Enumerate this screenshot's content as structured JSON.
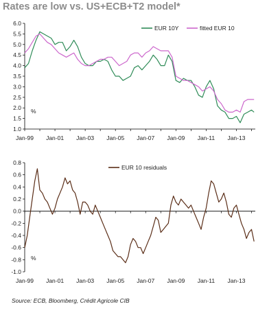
{
  "title": "Rates are low vs. US+ECB+T2 model*",
  "source": "Source: ECB, Bloomberg, Crédit Agricole CIB",
  "chart_data": [
    {
      "type": "line",
      "x_tick_labels": [
        "Jan-99",
        "Jan-01",
        "Jan-03",
        "Jan-05",
        "Jan-07",
        "Jan-09",
        "Jan-11",
        "Jan-13"
      ],
      "y_tick_labels": [
        "1.0",
        "1.5",
        "2.0",
        "2.5",
        "3.0",
        "3.5",
        "4.0",
        "4.5",
        "5.0",
        "5.5",
        "6.0"
      ],
      "ylim": [
        1.0,
        6.0
      ],
      "xlim": [
        "1999-01",
        "2014-04"
      ],
      "unit": "%",
      "legend_position": "top-right",
      "grid": false,
      "series": [
        {
          "name": "EUR 10Y",
          "color": "#2e8b57",
          "x": [
            "1999-01",
            "1999-04",
            "1999-07",
            "1999-10",
            "2000-01",
            "2000-04",
            "2000-07",
            "2000-10",
            "2001-01",
            "2001-04",
            "2001-07",
            "2001-10",
            "2002-01",
            "2002-04",
            "2002-07",
            "2002-10",
            "2003-01",
            "2003-04",
            "2003-07",
            "2003-10",
            "2004-01",
            "2004-04",
            "2004-07",
            "2004-10",
            "2005-01",
            "2005-04",
            "2005-07",
            "2005-10",
            "2006-01",
            "2006-04",
            "2006-07",
            "2006-10",
            "2007-01",
            "2007-04",
            "2007-07",
            "2007-10",
            "2008-01",
            "2008-04",
            "2008-07",
            "2008-10",
            "2009-01",
            "2009-04",
            "2009-07",
            "2009-10",
            "2010-01",
            "2010-04",
            "2010-07",
            "2010-10",
            "2011-01",
            "2011-04",
            "2011-07",
            "2011-10",
            "2012-01",
            "2012-04",
            "2012-07",
            "2012-10",
            "2013-01",
            "2013-04",
            "2013-07",
            "2013-10",
            "2014-01",
            "2014-03"
          ],
          "values": [
            3.9,
            4.1,
            4.7,
            5.2,
            5.6,
            5.5,
            5.4,
            5.3,
            5.0,
            5.1,
            5.1,
            4.7,
            4.9,
            5.2,
            4.9,
            4.4,
            4.1,
            4.0,
            4.0,
            4.2,
            4.2,
            4.3,
            4.2,
            3.8,
            3.5,
            3.5,
            3.3,
            3.4,
            3.5,
            3.9,
            4.0,
            3.8,
            4.0,
            4.2,
            4.5,
            4.3,
            4.0,
            4.0,
            4.5,
            4.2,
            3.3,
            3.2,
            3.4,
            3.3,
            3.3,
            3.0,
            2.6,
            2.5,
            3.0,
            3.3,
            2.9,
            2.1,
            1.9,
            1.8,
            1.5,
            1.5,
            1.6,
            1.3,
            1.7,
            1.8,
            1.9,
            1.8
          ]
        },
        {
          "name": "fitted EUR 10",
          "color": "#cc66cc",
          "x": [
            "1999-01",
            "1999-04",
            "1999-07",
            "1999-10",
            "2000-01",
            "2000-04",
            "2000-07",
            "2000-10",
            "2001-01",
            "2001-04",
            "2001-07",
            "2001-10",
            "2002-01",
            "2002-04",
            "2002-07",
            "2002-10",
            "2003-01",
            "2003-04",
            "2003-07",
            "2003-10",
            "2004-01",
            "2004-04",
            "2004-07",
            "2004-10",
            "2005-01",
            "2005-04",
            "2005-07",
            "2005-10",
            "2006-01",
            "2006-04",
            "2006-07",
            "2006-10",
            "2007-01",
            "2007-04",
            "2007-07",
            "2007-10",
            "2008-01",
            "2008-04",
            "2008-07",
            "2008-10",
            "2009-01",
            "2009-04",
            "2009-07",
            "2009-10",
            "2010-01",
            "2010-04",
            "2010-07",
            "2010-10",
            "2011-01",
            "2011-04",
            "2011-07",
            "2011-10",
            "2012-01",
            "2012-04",
            "2012-07",
            "2012-10",
            "2013-01",
            "2013-04",
            "2013-07",
            "2013-10",
            "2014-01",
            "2014-03"
          ],
          "values": [
            4.6,
            4.8,
            5.1,
            5.4,
            5.5,
            5.3,
            5.1,
            5.0,
            4.8,
            4.6,
            4.5,
            4.4,
            4.5,
            4.6,
            4.3,
            4.1,
            4.0,
            4.0,
            4.1,
            4.2,
            4.3,
            4.3,
            4.4,
            4.4,
            4.2,
            4.0,
            4.1,
            4.2,
            4.5,
            4.6,
            4.6,
            4.4,
            4.6,
            4.7,
            4.9,
            4.8,
            4.7,
            4.7,
            4.7,
            4.4,
            3.5,
            3.4,
            3.3,
            3.3,
            3.2,
            3.1,
            3.0,
            2.8,
            2.9,
            3.0,
            2.8,
            2.4,
            2.2,
            1.9,
            1.8,
            1.8,
            1.9,
            1.8,
            2.3,
            2.4,
            2.4,
            2.4
          ]
        }
      ]
    },
    {
      "type": "line",
      "x_tick_labels": [
        "Jan-99",
        "Jan-01",
        "Jan-03",
        "Jan-05",
        "Jan-07",
        "Jan-09",
        "Jan-11",
        "Jan-13"
      ],
      "y_tick_labels": [
        "-1.0",
        "-0.8",
        "-0.6",
        "-0.4",
        "-0.2",
        "0.0",
        "0.2",
        "0.4",
        "0.6",
        "0.8"
      ],
      "ylim": [
        -1.0,
        0.8
      ],
      "xlim": [
        "1999-01",
        "2014-04"
      ],
      "unit": "%",
      "legend_position": "top-right",
      "grid": false,
      "series": [
        {
          "name": "EUR 10 residuals",
          "color": "#5a2d17",
          "x": [
            "1999-01",
            "1999-03",
            "1999-05",
            "1999-07",
            "1999-09",
            "1999-11",
            "2000-01",
            "2000-03",
            "2000-05",
            "2000-07",
            "2000-09",
            "2000-11",
            "2001-01",
            "2001-03",
            "2001-05",
            "2001-07",
            "2001-09",
            "2001-11",
            "2002-01",
            "2002-03",
            "2002-05",
            "2002-07",
            "2002-09",
            "2002-11",
            "2003-01",
            "2003-03",
            "2003-05",
            "2003-07",
            "2003-09",
            "2003-11",
            "2004-01",
            "2004-03",
            "2004-05",
            "2004-07",
            "2004-09",
            "2004-11",
            "2005-01",
            "2005-03",
            "2005-05",
            "2005-07",
            "2005-09",
            "2005-11",
            "2006-01",
            "2006-03",
            "2006-05",
            "2006-07",
            "2006-09",
            "2006-11",
            "2007-01",
            "2007-03",
            "2007-05",
            "2007-07",
            "2007-09",
            "2007-11",
            "2008-01",
            "2008-03",
            "2008-05",
            "2008-07",
            "2008-09",
            "2008-11",
            "2009-01",
            "2009-03",
            "2009-05",
            "2009-07",
            "2009-09",
            "2009-11",
            "2010-01",
            "2010-03",
            "2010-05",
            "2010-07",
            "2010-09",
            "2010-11",
            "2011-01",
            "2011-03",
            "2011-05",
            "2011-07",
            "2011-09",
            "2011-11",
            "2012-01",
            "2012-03",
            "2012-05",
            "2012-07",
            "2012-09",
            "2012-11",
            "2013-01",
            "2013-03",
            "2013-05",
            "2013-07",
            "2013-09",
            "2013-11",
            "2014-01",
            "2014-03"
          ],
          "values": [
            -0.6,
            -0.4,
            -0.1,
            0.2,
            0.5,
            0.7,
            0.35,
            0.3,
            0.2,
            0.15,
            0.05,
            -0.05,
            0.05,
            0.2,
            0.3,
            0.4,
            0.55,
            0.45,
            0.5,
            0.35,
            0.3,
            0.15,
            -0.05,
            0.15,
            0.15,
            0.1,
            0.0,
            -0.05,
            0.1,
            0.0,
            -0.1,
            -0.2,
            -0.3,
            -0.4,
            -0.5,
            -0.65,
            -0.7,
            -0.75,
            -0.75,
            -0.8,
            -0.85,
            -0.75,
            -0.55,
            -0.45,
            -0.5,
            -0.6,
            -0.6,
            -0.7,
            -0.6,
            -0.5,
            -0.4,
            -0.25,
            -0.1,
            -0.15,
            -0.35,
            -0.3,
            -0.25,
            -0.2,
            0.1,
            0.25,
            0.15,
            0.1,
            0.2,
            0.15,
            0.1,
            0.05,
            0.1,
            0.0,
            -0.1,
            -0.2,
            -0.3,
            -0.1,
            0.05,
            0.3,
            0.5,
            0.45,
            0.3,
            0.15,
            0.2,
            0.3,
            0.15,
            -0.05,
            -0.1,
            0.05,
            0.1,
            -0.05,
            -0.2,
            -0.3,
            -0.45,
            -0.35,
            -0.3,
            -0.5
          ]
        }
      ]
    }
  ]
}
